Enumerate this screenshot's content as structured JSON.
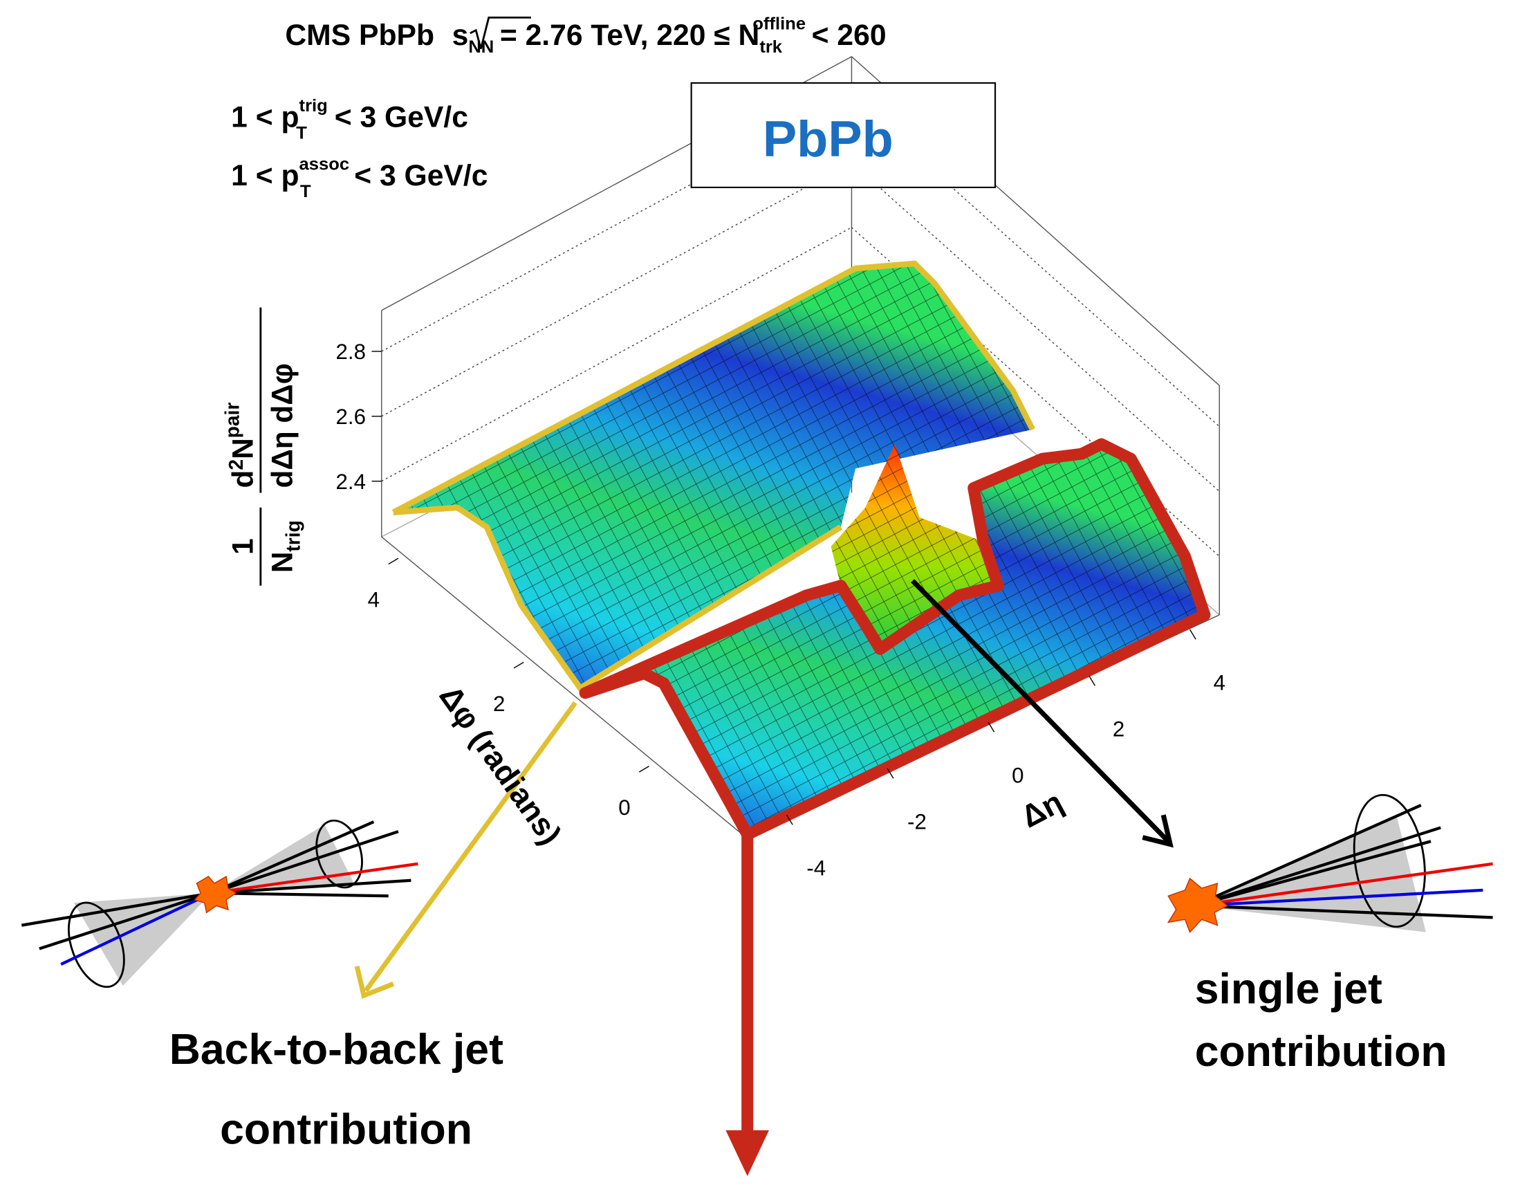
{
  "header": {
    "title": {
      "prefix": "CMS PbPb",
      "root": "s",
      "root_sub": "NN",
      "middle": "= 2.76 TeV, 220 ≤ N",
      "n_sub": "trk",
      "n_sup": "offline",
      "suffix": "< 260"
    },
    "cuts": [
      {
        "lead": "1 < p",
        "sup": "trig",
        "sub": "T",
        "range": "< 3 GeV/c"
      },
      {
        "lead": "1 < p",
        "sup": "assoc",
        "sub": "T",
        "range": "< 3 GeV/c"
      }
    ]
  },
  "legend_box": "PbPb",
  "axes": {
    "z": {
      "label": {
        "one": "1",
        "n": "N",
        "n_sub": "trig",
        "d": "d",
        "d_sup": "2",
        "dn": "N",
        "dn_sup": "pair",
        "denom": "dΔη dΔφ"
      },
      "ticks": [
        2.4,
        2.6,
        2.8
      ]
    },
    "phi": {
      "label": "Δφ (radians)",
      "ticks": [
        0,
        2,
        4
      ]
    },
    "eta": {
      "label": "Δη",
      "ticks": [
        -4,
        -2,
        0,
        2,
        4
      ]
    }
  },
  "annotations": {
    "back_to_back": [
      "Back-to-back jet",
      "contribution"
    ],
    "single": [
      "single jet",
      "contribution"
    ]
  }
}
